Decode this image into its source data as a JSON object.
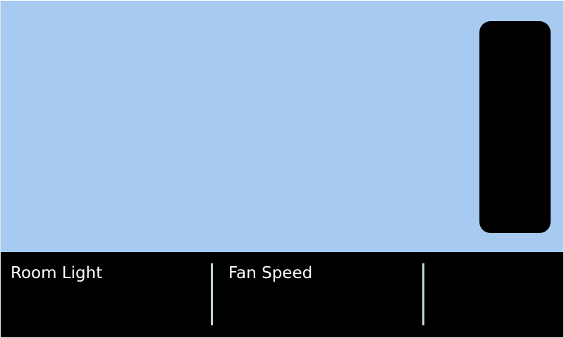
{
  "colors": {
    "main_background": "#a6caf0",
    "panel_background": "#000000",
    "label_text": "#ffffff",
    "divider": "#c3d7c9"
  },
  "controls": {
    "tiles": [
      {
        "label": "Room Light"
      },
      {
        "label": "Fan Speed"
      },
      {
        "label": ""
      }
    ]
  }
}
